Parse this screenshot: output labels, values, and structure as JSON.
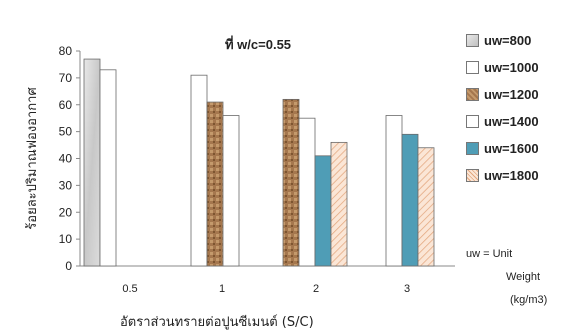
{
  "chart_data": {
    "type": "bar",
    "title": "ที่ w/c=0.55",
    "xlabel": "อัตราส่วนทรายต่อปูนซีเมนต์ (S/C)",
    "ylabel": "ร้อยละปริมาณฟองอากาศ",
    "categories": [
      "0.5",
      "1",
      "2",
      "3"
    ],
    "ylim": [
      0,
      80
    ],
    "yticks": [
      0,
      10,
      20,
      30,
      40,
      50,
      60,
      70,
      80
    ],
    "grid": false,
    "legend_position": "right",
    "series": [
      {
        "name": "uw=800",
        "values": [
          77,
          null,
          null,
          null
        ],
        "color": "#d4d4d4"
      },
      {
        "name": "uw=1000",
        "values": [
          73,
          71,
          null,
          null
        ],
        "color": "#ffffff"
      },
      {
        "name": "uw=1200",
        "values": [
          null,
          61,
          62,
          null
        ],
        "color": "#a5774e"
      },
      {
        "name": "uw=1400",
        "values": [
          null,
          56,
          55,
          56
        ],
        "color": "#ffffff"
      },
      {
        "name": "uw=1600",
        "values": [
          null,
          null,
          41,
          49
        ],
        "color": "#4f9db6"
      },
      {
        "name": "uw=1800",
        "values": [
          null,
          null,
          46,
          44
        ],
        "color": "#f3d2b8"
      }
    ],
    "annotation": [
      "uw =  Unit",
      "Weight",
      "(kg/m3)"
    ]
  }
}
